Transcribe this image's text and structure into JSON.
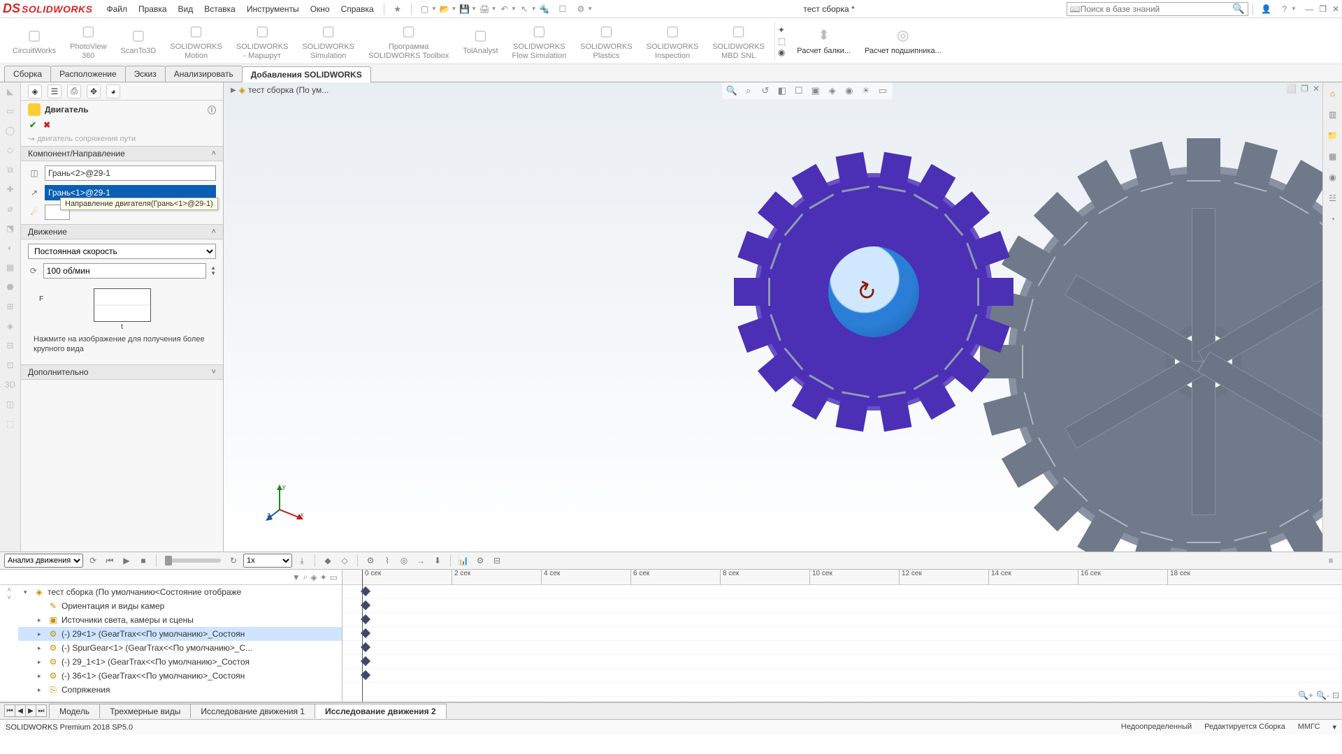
{
  "app": {
    "logo_prefix": "DS",
    "logo_text": "SOLIDWORKS"
  },
  "menu": [
    "Файл",
    "Правка",
    "Вид",
    "Вставка",
    "Инструменты",
    "Окно",
    "Справка"
  ],
  "doc_title": "тест сборка *",
  "search_placeholder": "Поиск в базе знаний",
  "ribbon": [
    "CircuitWorks",
    "PhotoView 360",
    "ScanTo3D",
    "SOLIDWORKS Motion",
    "SOLIDWORKS - Маршрут",
    "SOLIDWORKS Simulation",
    "Программа SOLIDWORKS Toolbox",
    "TolAnalyst",
    "SOLIDWORKS Flow Simulation",
    "SOLIDWORKS Plastics",
    "SOLIDWORKS Inspection",
    "SOLIDWORKS MBD SNL"
  ],
  "ribbon_calc": [
    "Расчет балки...",
    "Расчет подшипника..."
  ],
  "tabs": {
    "items": [
      "Сборка",
      "Расположение",
      "Эскиз",
      "Анализировать",
      "Добавления SOLIDWORKS"
    ],
    "active": 4
  },
  "panel": {
    "title": "Двигатель",
    "truncated_top": "двигатель сопряжения пути",
    "section1": "Компонент/Направление",
    "face1": "Грань<2>@29-1",
    "face2": "Грань<1>@29-1",
    "tooltip": "Направление двигателя(Грань<1>@29-1)",
    "section2": "Движение",
    "speed_type": "Постоянная скорость",
    "speed_value": "100 об/мин",
    "graph_axis": "t",
    "graph_label": "F",
    "hint": "Нажмите на изображение для получения более крупного вида",
    "section3": "Дополнительно"
  },
  "breadcrumb": "тест сборка  (По ум...",
  "motion": {
    "study_type": "Анализ движения",
    "speed_combo": "1x",
    "ruler_unit": "сек",
    "ruler_ticks": [
      0,
      2,
      4,
      6,
      8,
      10,
      12,
      14,
      16,
      18
    ],
    "tree": [
      {
        "lvl": 0,
        "exp": "▾",
        "ico": "◈",
        "txt": "тест сборка  (По умолчанию<Состояние отображе",
        "sel": false
      },
      {
        "lvl": 1,
        "exp": "",
        "ico": "✎",
        "txt": "Ориентация и виды камер",
        "sel": false
      },
      {
        "lvl": 1,
        "exp": "▸",
        "ico": "▣",
        "txt": "Источники света, камеры и сцены",
        "sel": false
      },
      {
        "lvl": 1,
        "exp": "▸",
        "ico": "⚙",
        "txt": "(-) 29<1> (GearTrax<<По умолчанию>_Состоян",
        "sel": true
      },
      {
        "lvl": 1,
        "exp": "▸",
        "ico": "⚙",
        "txt": "(-) SpurGear<1> (GearTrax<<По умолчанию>_С...",
        "sel": false
      },
      {
        "lvl": 1,
        "exp": "▸",
        "ico": "⚙",
        "txt": "(-) 29_1<1> (GearTrax<<По умолчанию>_Состоя",
        "sel": false
      },
      {
        "lvl": 1,
        "exp": "▸",
        "ico": "⚙",
        "txt": "(-) 36<1> (GearTrax<<По умолчанию>_Состоян",
        "sel": false
      },
      {
        "lvl": 1,
        "exp": "▸",
        "ico": "⎘",
        "txt": "Сопряжения",
        "sel": false
      }
    ]
  },
  "bottom_tabs": {
    "items": [
      "Модель",
      "Трехмерные виды",
      "Исследование движения 1",
      "Исследование движения 2"
    ],
    "active": 3
  },
  "status": {
    "left": "SOLIDWORKS Premium 2018 SP5.0",
    "mid": "Недоопределенный",
    "right1": "Редактируется Сборка",
    "right2": "ММГС"
  },
  "colors": {
    "gear_purple": "#4b2fb5",
    "gear_purple_edge": "#6a52c7",
    "gear_gray": "#707a8a",
    "gear_gray_edge": "#8892a2",
    "hub_blue": "#2a7ed6",
    "selection_blue": "#0a5fb4",
    "logo_red": "#d9252a",
    "motor_arrow": "#8b1a00"
  },
  "geometry": {
    "gear1_teeth": 18,
    "gear2_teeth": 24,
    "gear2_spokes": 6
  }
}
